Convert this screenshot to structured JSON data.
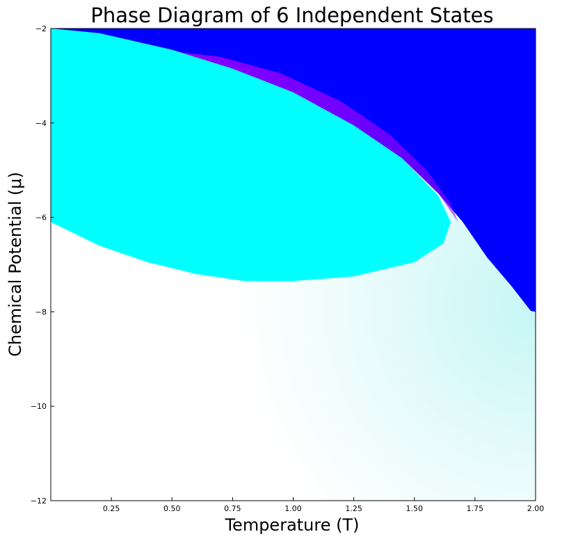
{
  "chart_data": {
    "type": "heatmap",
    "title": "Phase Diagram of 6 Independent States",
    "xlabel": "Temperature (T)",
    "ylabel": "Chemical Potential (μ)",
    "xlim": [
      0.0,
      2.0
    ],
    "ylim": [
      -12,
      -2
    ],
    "xticks": [
      0.25,
      0.5,
      0.75,
      1.0,
      1.25,
      1.5,
      1.75,
      2.0
    ],
    "xtick_labels": [
      "0.25",
      "0.50",
      "0.75",
      "1.00",
      "1.25",
      "1.50",
      "1.75",
      "2.00"
    ],
    "yticks": [
      -12,
      -10,
      -8,
      -6,
      -4,
      -2
    ],
    "ytick_labels": [
      "−12",
      "−10",
      "−8",
      "−6",
      "−4",
      "−2"
    ],
    "grid": false,
    "colors": {
      "blue_phase": "#0000ff",
      "cyan_phase": "#00ffff",
      "purple_transition": "#9900ff",
      "dilute_region": "#ffffff",
      "dilute_tint": "#c6f6f6"
    },
    "regions": [
      {
        "color": "#0000ff",
        "boundary": [
          [
            0.0,
            -2.0
          ],
          [
            0.2,
            -2.1
          ],
          [
            0.5,
            -2.45
          ],
          [
            0.75,
            -2.85
          ],
          [
            1.0,
            -3.35
          ],
          [
            1.25,
            -4.05
          ],
          [
            1.45,
            -4.75
          ],
          [
            1.6,
            -5.5
          ],
          [
            1.7,
            -6.1
          ],
          [
            1.8,
            -6.85
          ],
          [
            1.9,
            -7.45
          ],
          [
            1.98,
            -7.98
          ],
          [
            2.0,
            -8.0
          ],
          [
            2.0,
            -2.0
          ]
        ]
      },
      {
        "color": "#00ffff",
        "boundary": [
          [
            0.0,
            -2.0
          ],
          [
            0.2,
            -2.1
          ],
          [
            0.5,
            -2.45
          ],
          [
            0.75,
            -2.85
          ],
          [
            1.0,
            -3.35
          ],
          [
            1.25,
            -4.05
          ],
          [
            1.45,
            -4.75
          ],
          [
            1.6,
            -5.55
          ],
          [
            1.65,
            -6.1
          ],
          [
            1.62,
            -6.55
          ],
          [
            1.5,
            -6.95
          ],
          [
            1.25,
            -7.25
          ],
          [
            1.0,
            -7.35
          ],
          [
            0.8,
            -7.35
          ],
          [
            0.6,
            -7.2
          ],
          [
            0.4,
            -6.95
          ],
          [
            0.2,
            -6.6
          ],
          [
            0.0,
            -6.1
          ]
        ]
      }
    ],
    "transition_band": {
      "color": "#9900ff",
      "outer_boundary": [
        [
          0.45,
          -2.45
        ],
        [
          0.7,
          -2.6
        ],
        [
          0.95,
          -2.95
        ],
        [
          1.2,
          -3.55
        ],
        [
          1.4,
          -4.25
        ],
        [
          1.55,
          -5.0
        ],
        [
          1.65,
          -5.7
        ],
        [
          1.68,
          -6.1
        ]
      ],
      "inner_boundary": [
        [
          0.45,
          -2.45
        ],
        [
          0.75,
          -2.85
        ],
        [
          1.0,
          -3.35
        ],
        [
          1.25,
          -4.05
        ],
        [
          1.45,
          -4.75
        ],
        [
          1.6,
          -5.5
        ],
        [
          1.68,
          -6.1
        ]
      ]
    }
  }
}
